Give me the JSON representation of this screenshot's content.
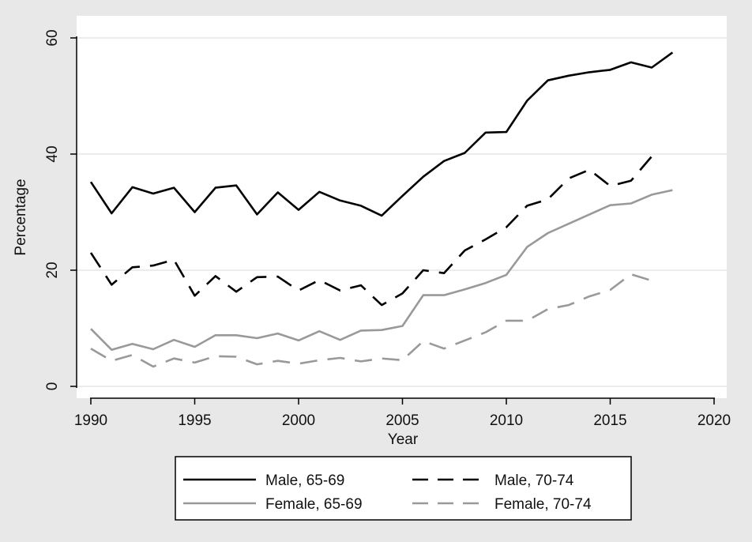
{
  "chart_data": {
    "type": "line",
    "xlabel": "Year",
    "ylabel": "Percentage",
    "xlim": [
      1990,
      2020
    ],
    "ylim": [
      0,
      60
    ],
    "xticks": [
      "1990",
      "1995",
      "2000",
      "2005",
      "2010",
      "2015",
      "2020"
    ],
    "yticks": [
      "0",
      "20",
      "40",
      "60"
    ],
    "grid": "horizontal",
    "legend_position": "bottom",
    "series": [
      {
        "name": "Male, 65-69",
        "color": "#000000",
        "dash": "solid",
        "x": [
          1990,
          1991,
          1992,
          1993,
          1994,
          1995,
          1996,
          1997,
          1998,
          1999,
          2000,
          2001,
          2002,
          2003,
          2004,
          2005,
          2006,
          2007,
          2008,
          2009,
          2010,
          2011,
          2012,
          2013,
          2014,
          2015,
          2016,
          2017,
          2018
        ],
        "values": [
          35.2,
          29.8,
          34.3,
          33.2,
          34.2,
          30.0,
          34.2,
          34.6,
          29.6,
          33.4,
          30.4,
          33.5,
          32.0,
          31.1,
          29.4,
          32.8,
          36.1,
          38.8,
          40.2,
          43.7,
          43.8,
          49.2,
          52.7,
          53.5,
          54.1,
          54.5,
          55.8,
          54.9,
          57.5
        ]
      },
      {
        "name": "Male, 70-74",
        "color": "#000000",
        "dash": "dashed",
        "x": [
          1990,
          1991,
          1992,
          1993,
          1994,
          1995,
          1996,
          1997,
          1998,
          1999,
          2000,
          2001,
          2002,
          2003,
          2004,
          2005,
          2006,
          2007,
          2008,
          2009,
          2010,
          2011,
          2012,
          2013,
          2014,
          2015,
          2016,
          2017
        ],
        "values": [
          23.0,
          17.5,
          20.5,
          20.8,
          21.8,
          15.6,
          19.0,
          16.3,
          18.8,
          18.9,
          16.5,
          18.3,
          16.5,
          17.4,
          14.0,
          16.0,
          20.0,
          19.5,
          23.4,
          25.3,
          27.4,
          31.1,
          32.2,
          35.8,
          37.3,
          34.5,
          35.4,
          39.6
        ]
      },
      {
        "name": "Female, 65-69",
        "color": "#999999",
        "dash": "solid",
        "x": [
          1990,
          1991,
          1992,
          1993,
          1994,
          1995,
          1996,
          1997,
          1998,
          1999,
          2000,
          2001,
          2002,
          2003,
          2004,
          2005,
          2006,
          2007,
          2008,
          2009,
          2010,
          2011,
          2012,
          2013,
          2014,
          2015,
          2016,
          2017,
          2018
        ],
        "values": [
          9.9,
          6.3,
          7.3,
          6.4,
          8.0,
          6.8,
          8.8,
          8.8,
          8.3,
          9.1,
          7.9,
          9.5,
          8.0,
          9.6,
          9.7,
          10.4,
          15.7,
          15.7,
          16.7,
          17.8,
          19.2,
          24.0,
          26.4,
          28.0,
          29.6,
          31.2,
          31.5,
          33.0,
          33.8
        ]
      },
      {
        "name": "Female, 70-74",
        "color": "#999999",
        "dash": "dashed",
        "x": [
          1990,
          1991,
          1992,
          1993,
          1994,
          1995,
          1996,
          1997,
          1998,
          1999,
          2000,
          2001,
          2002,
          2003,
          2004,
          2005,
          2006,
          2007,
          2008,
          2009,
          2010,
          2011,
          2012,
          2013,
          2014,
          2015,
          2016,
          2017
        ],
        "values": [
          6.5,
          4.4,
          5.4,
          3.4,
          4.8,
          4.1,
          5.2,
          5.1,
          3.8,
          4.4,
          3.9,
          4.5,
          4.9,
          4.3,
          4.8,
          4.5,
          7.8,
          6.5,
          7.9,
          9.3,
          11.3,
          11.3,
          13.3,
          14.0,
          15.5,
          16.6,
          19.3,
          18.2
        ]
      }
    ]
  }
}
